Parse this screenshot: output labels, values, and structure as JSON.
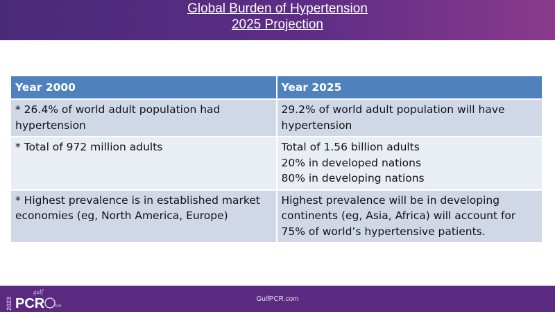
{
  "header": {
    "title_line1": "Global Burden of Hypertension",
    "title_line2": "2025 Projection"
  },
  "table": {
    "headers": [
      "Year 2000",
      "Year 2025"
    ],
    "rows": [
      {
        "left": [
          "* 26.4% of world adult population had",
          "hypertension"
        ],
        "right": [
          "29.2% of world adult population will have",
          "hypertension"
        ]
      },
      {
        "left": [
          "* Total of 972 million adults"
        ],
        "right": [
          "Total of 1.56 billion adults",
          "20% in developed nations",
          "80% in developing nations"
        ]
      },
      {
        "left": [
          "* Highest prevalence is in established market",
          "economies (eg, North America, Europe)"
        ],
        "right": [
          "Highest prevalence will be in developing",
          "continents (eg, Asia, Africa) will  account for",
          "75% of world’s hypertensive patients."
        ]
      }
    ]
  },
  "footer": {
    "url": "GulfPCR.com",
    "logo": {
      "year": "2023",
      "brand_small": "gulf",
      "brand": "PCR",
      "suffix": "GIM"
    }
  },
  "colors": {
    "header_start": "#4a2a78",
    "header_end": "#8a3a8c",
    "table_header": "#4f81bd",
    "row_dark": "#d0d8e8",
    "row_light": "#e9edf4",
    "footer": "#5a2a80"
  }
}
